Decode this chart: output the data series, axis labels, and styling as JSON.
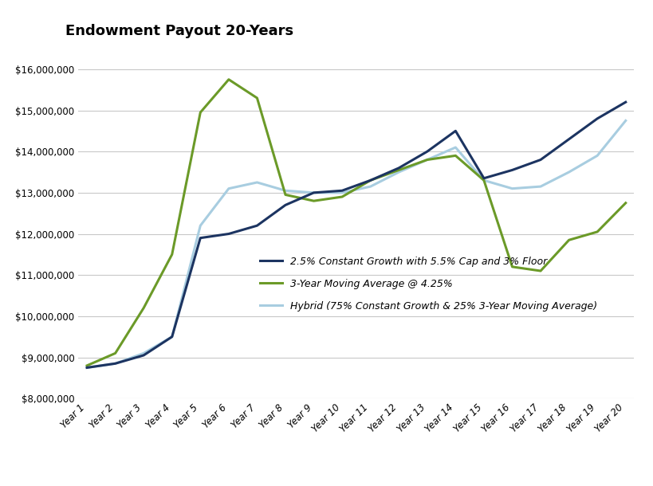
{
  "title": "Endowment Payout 20-Years",
  "years": [
    "Year 1",
    "Year 2",
    "Year 3",
    "Year 4",
    "Year 5",
    "Year 6",
    "Year 7",
    "Year 8",
    "Year 9",
    "Year 10",
    "Year 11",
    "Year 12",
    "Year 13",
    "Year 14",
    "Year 15",
    "Year 16",
    "Year 17",
    "Year 18",
    "Year 19",
    "Year 20"
  ],
  "constant_growth": [
    8750000,
    8850000,
    9050000,
    9500000,
    11900000,
    12000000,
    12200000,
    12700000,
    13000000,
    13050000,
    13300000,
    13600000,
    14000000,
    14500000,
    13350000,
    13550000,
    13800000,
    14300000,
    14800000,
    15200000
  ],
  "moving_avg": [
    8800000,
    9100000,
    10200000,
    11500000,
    14950000,
    15750000,
    15300000,
    12950000,
    12800000,
    12900000,
    13300000,
    13550000,
    13800000,
    13900000,
    13300000,
    11200000,
    11100000,
    11850000,
    12050000,
    12750000
  ],
  "hybrid": [
    8750000,
    8850000,
    9100000,
    9500000,
    12200000,
    13100000,
    13250000,
    13050000,
    13000000,
    13000000,
    13150000,
    13500000,
    13800000,
    14100000,
    13300000,
    13100000,
    13150000,
    13500000,
    13900000,
    14750000
  ],
  "constant_growth_color": "#1c3461",
  "moving_avg_color": "#6b9a28",
  "hybrid_color": "#a8cde0",
  "ylim_min": 8000000,
  "ylim_max": 16500000,
  "ylabel_ticks": [
    8000000,
    9000000,
    10000000,
    11000000,
    12000000,
    13000000,
    14000000,
    15000000,
    16000000
  ],
  "legend_labels": [
    "2.5% Constant Growth with 5.5% Cap and 3% Floor",
    "3-Year Moving Average @ 4.25%",
    "Hybrid (75% Constant Growth & 25% 3-Year Moving Average)"
  ],
  "background_color": "#ffffff",
  "grid_color": "#c8c8c8",
  "title_fontsize": 13,
  "tick_fontsize": 8.5,
  "legend_fontsize": 9
}
